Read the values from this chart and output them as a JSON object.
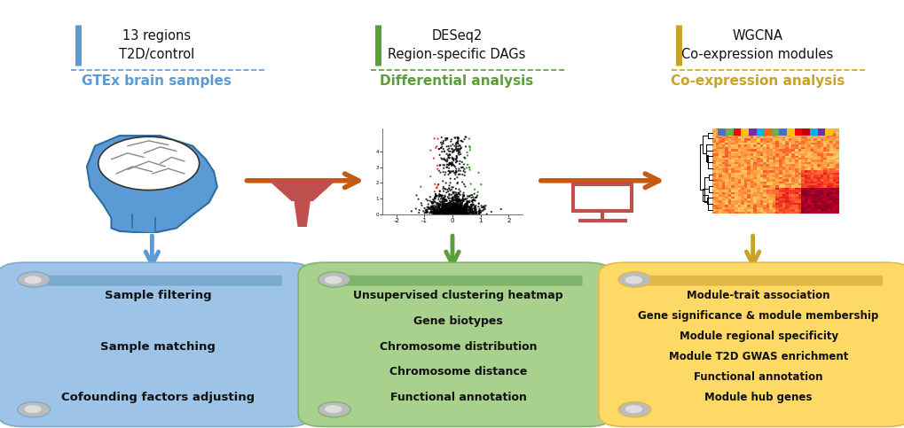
{
  "bg_color": "#ffffff",
  "fig_width": 10.2,
  "fig_height": 4.83,
  "blue_color": "#5B9BD5",
  "green_color": "#5A9E3A",
  "gold_color": "#C9A227",
  "orange_arrow_color": "#C55A11",
  "pink_funnel_color": "#C0504D",
  "col1_header1": "13 regions",
  "col1_header2": "T2D/control",
  "col1_subheader": "GTEx brain samples",
  "col1_bar_color": "#5B9BD5",
  "col2_header1": "DESeq2",
  "col2_header2": "Region-specific DAGs",
  "col2_subheader": "Differential analysis",
  "col2_bar_color": "#5A9E3A",
  "col3_header1": "WGCNA",
  "col3_header2": "Co-expression modules",
  "col3_subheader": "Co-expression analysis",
  "col3_bar_color": "#C9A227",
  "scroll1_lines": [
    "Sample filtering",
    "Sample matching",
    "Cofounding factors adjusting"
  ],
  "scroll2_lines": [
    "Unsupervised clustering heatmap",
    "Gene biotypes",
    "Chromosome distribution",
    "Chromosome distance",
    "Functional annotation"
  ],
  "scroll3_lines": [
    "Module-trait association",
    "Gene significance & module membership",
    "Module regional specificity",
    "Module T2D GWAS enrichment",
    "Functional annotation",
    "Module hub genes"
  ],
  "scroll1_bg": "#9DC3E6",
  "scroll2_bg": "#A9D18E",
  "scroll3_bg": "#FFD966",
  "scroll1_edge": "#7AABCF",
  "scroll2_edge": "#82B36A",
  "scroll3_edge": "#E0B84A"
}
